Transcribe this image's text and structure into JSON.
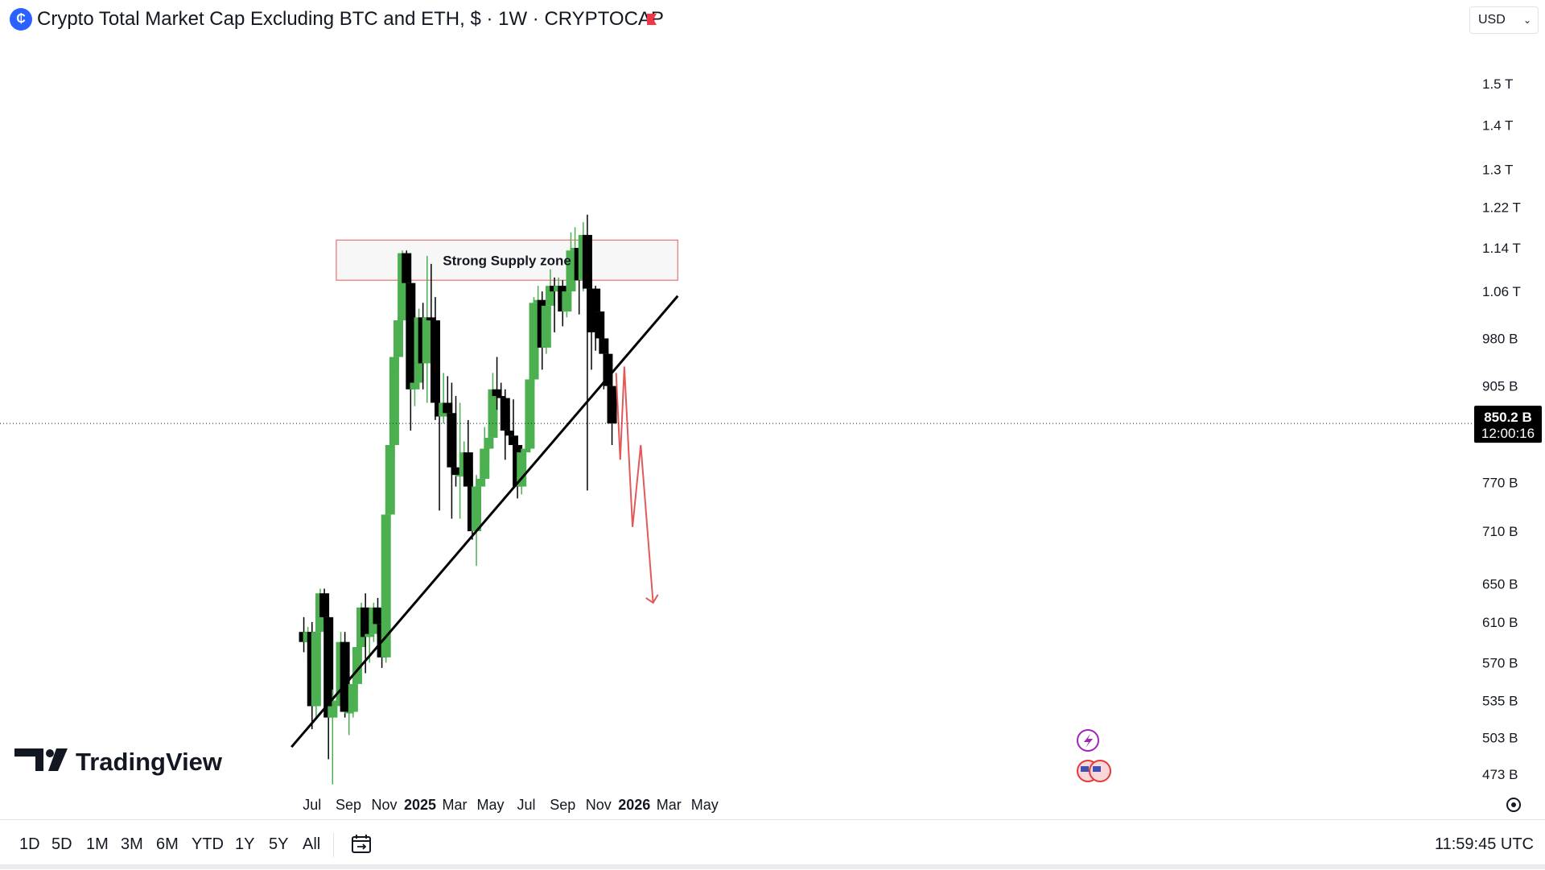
{
  "header": {
    "title": "Crypto Total Market Cap Excluding BTC and ETH, $ · 1W · CRYPTOCAP",
    "currency": "USD",
    "symbol_icon": "cryptocap-logo-icon",
    "flag_icon": "red-flag-icon"
  },
  "bottom_bar": {
    "ranges": [
      "1D",
      "5D",
      "1M",
      "3M",
      "6M",
      "YTD",
      "1Y",
      "5Y",
      "All"
    ],
    "time_utc": "11:59:45 UTC",
    "calendar_icon": "goto-date-calendar-icon"
  },
  "chart_data": {
    "type": "candlestick",
    "title": "",
    "price_scale": "log",
    "ylim": [
      455,
      1610
    ],
    "y_ticks": [
      {
        "label": "1.5 T",
        "value": 1500
      },
      {
        "label": "1.4 T",
        "value": 1400
      },
      {
        "label": "1.3 T",
        "value": 1300
      },
      {
        "label": "1.22 T",
        "value": 1220
      },
      {
        "label": "1.14 T",
        "value": 1140
      },
      {
        "label": "1.06 T",
        "value": 1060
      },
      {
        "label": "980 B",
        "value": 980
      },
      {
        "label": "905 B",
        "value": 905
      },
      {
        "label": "770 B",
        "value": 770
      },
      {
        "label": "710 B",
        "value": 710
      },
      {
        "label": "650 B",
        "value": 650
      },
      {
        "label": "610 B",
        "value": 610
      },
      {
        "label": "570 B",
        "value": 570
      },
      {
        "label": "535 B",
        "value": 535
      },
      {
        "label": "503 B",
        "value": 503
      },
      {
        "label": "473 B",
        "value": 473
      }
    ],
    "x_ticks": [
      {
        "label": "Jul",
        "date": "2024-07-01",
        "bold": false
      },
      {
        "label": "Sep",
        "date": "2024-09-01",
        "bold": false
      },
      {
        "label": "Nov",
        "date": "2024-11-01",
        "bold": false
      },
      {
        "label": "2025",
        "date": "2025-01-01",
        "bold": true
      },
      {
        "label": "Mar",
        "date": "2025-03-01",
        "bold": false
      },
      {
        "label": "May",
        "date": "2025-05-01",
        "bold": false
      },
      {
        "label": "Jul",
        "date": "2025-07-01",
        "bold": false
      },
      {
        "label": "Sep",
        "date": "2025-09-01",
        "bold": false
      },
      {
        "label": "Nov",
        "date": "2025-11-01",
        "bold": false
      },
      {
        "label": "2026",
        "date": "2026-01-01",
        "bold": true
      },
      {
        "label": "Mar",
        "date": "2026-03-01",
        "bold": false
      },
      {
        "label": "May",
        "date": "2026-05-01",
        "bold": false
      }
    ],
    "ohlc_columns": [
      "week",
      "open",
      "high",
      "low",
      "close"
    ],
    "candles": [
      [
        "2024-06-17",
        600,
        615,
        580,
        590
      ],
      [
        "2024-06-24",
        590,
        605,
        570,
        600
      ],
      [
        "2024-07-01",
        600,
        610,
        510,
        530
      ],
      [
        "2024-07-08",
        530,
        605,
        520,
        600
      ],
      [
        "2024-07-15",
        600,
        645,
        595,
        640
      ],
      [
        "2024-07-22",
        640,
        645,
        605,
        615
      ],
      [
        "2024-07-29",
        615,
        620,
        485,
        520
      ],
      [
        "2024-08-05",
        520,
        545,
        465,
        530
      ],
      [
        "2024-08-12",
        530,
        545,
        520,
        535
      ],
      [
        "2024-08-19",
        535,
        600,
        530,
        590
      ],
      [
        "2024-08-26",
        590,
        600,
        520,
        525
      ],
      [
        "2024-09-02",
        525,
        535,
        505,
        525
      ],
      [
        "2024-09-09",
        525,
        555,
        520,
        550
      ],
      [
        "2024-09-16",
        550,
        590,
        545,
        585
      ],
      [
        "2024-09-23",
        585,
        630,
        580,
        625
      ],
      [
        "2024-09-30",
        625,
        640,
        560,
        595
      ],
      [
        "2024-10-07",
        595,
        605,
        570,
        598
      ],
      [
        "2024-10-14",
        598,
        630,
        590,
        625
      ],
      [
        "2024-10-21",
        625,
        635,
        595,
        608
      ],
      [
        "2024-10-28",
        608,
        615,
        565,
        575
      ],
      [
        "2024-11-04",
        575,
        740,
        570,
        730
      ],
      [
        "2024-11-11",
        730,
        830,
        715,
        820
      ],
      [
        "2024-11-18",
        820,
        995,
        800,
        950
      ],
      [
        "2024-11-25",
        950,
        1025,
        930,
        1010
      ],
      [
        "2024-12-02",
        1010,
        1135,
        985,
        1130
      ],
      [
        "2024-12-09",
        1130,
        1135,
        1065,
        1075
      ],
      [
        "2024-12-16",
        1075,
        1085,
        840,
        900
      ],
      [
        "2024-12-23",
        900,
        915,
        875,
        910
      ],
      [
        "2024-12-30",
        910,
        1030,
        900,
        1015
      ],
      [
        "2025-01-06",
        1015,
        1040,
        900,
        940
      ],
      [
        "2025-01-13",
        940,
        1125,
        880,
        1015
      ],
      [
        "2025-01-20",
        1015,
        1110,
        960,
        1010
      ],
      [
        "2025-01-27",
        1010,
        1050,
        855,
        880
      ],
      [
        "2025-02-03",
        880,
        925,
        735,
        860
      ],
      [
        "2025-02-10",
        860,
        925,
        850,
        880
      ],
      [
        "2025-02-17",
        880,
        920,
        840,
        865
      ],
      [
        "2025-02-24",
        865,
        910,
        725,
        790
      ],
      [
        "2025-03-03",
        790,
        890,
        765,
        780
      ],
      [
        "2025-03-10",
        780,
        880,
        725,
        780
      ],
      [
        "2025-03-17",
        780,
        825,
        775,
        810
      ],
      [
        "2025-03-24",
        810,
        855,
        745,
        765
      ],
      [
        "2025-03-31",
        765,
        790,
        700,
        710
      ],
      [
        "2025-04-07",
        710,
        780,
        670,
        765
      ],
      [
        "2025-04-14",
        765,
        790,
        750,
        775
      ],
      [
        "2025-04-21",
        775,
        845,
        765,
        815
      ],
      [
        "2025-04-28",
        815,
        840,
        800,
        830
      ],
      [
        "2025-05-05",
        830,
        925,
        815,
        900
      ],
      [
        "2025-05-12",
        900,
        950,
        870,
        890
      ],
      [
        "2025-05-19",
        890,
        910,
        865,
        887
      ],
      [
        "2025-05-26",
        887,
        900,
        800,
        840
      ],
      [
        "2025-06-02",
        840,
        875,
        825,
        833
      ],
      [
        "2025-06-09",
        833,
        885,
        810,
        820
      ],
      [
        "2025-06-16",
        820,
        830,
        750,
        765
      ],
      [
        "2025-06-23",
        765,
        815,
        755,
        810
      ],
      [
        "2025-06-30",
        810,
        825,
        790,
        815
      ],
      [
        "2025-07-07",
        815,
        920,
        810,
        915
      ],
      [
        "2025-07-14",
        915,
        1050,
        905,
        1040
      ],
      [
        "2025-07-21",
        1040,
        1070,
        1010,
        1045
      ],
      [
        "2025-07-28",
        1045,
        1060,
        930,
        965
      ],
      [
        "2025-08-04",
        965,
        1060,
        955,
        1035
      ],
      [
        "2025-08-11",
        1035,
        1100,
        1020,
        1070
      ],
      [
        "2025-08-18",
        1070,
        1085,
        990,
        1060
      ],
      [
        "2025-08-25",
        1060,
        1085,
        1040,
        1070
      ],
      [
        "2025-09-01",
        1070,
        1080,
        1000,
        1025
      ],
      [
        "2025-09-08",
        1025,
        1070,
        1015,
        1060
      ],
      [
        "2025-09-15",
        1060,
        1170,
        1050,
        1135
      ],
      [
        "2025-09-22",
        1135,
        1180,
        1115,
        1140
      ],
      [
        "2025-09-29",
        1140,
        1160,
        1020,
        1080
      ],
      [
        "2025-10-06",
        1080,
        1190,
        1060,
        1165
      ],
      [
        "2025-10-13",
        1165,
        1205,
        760,
        1065
      ],
      [
        "2025-10-20",
        1065,
        1095,
        930,
        990
      ],
      [
        "2025-10-27",
        1065,
        1070,
        960,
        1025
      ],
      [
        "2025-11-03",
        1025,
        1055,
        960,
        980
      ],
      [
        "2025-11-10",
        980,
        980,
        900,
        955
      ],
      [
        "2025-11-17",
        955,
        960,
        860,
        905
      ],
      [
        "2025-11-24",
        905,
        905,
        820,
        850
      ]
    ],
    "current_price": {
      "label": "850.2 B",
      "countdown": "12:00:16",
      "value": 850.2
    },
    "annotations": [
      {
        "type": "rectangle",
        "label": "Strong Supply zone",
        "date_from": "2024-11-18",
        "date_to": "2026-03-16",
        "price_top": 1155,
        "price_bottom": 1080
      },
      {
        "type": "trendline",
        "from": {
          "date": "2024-05-27",
          "price": 495
        },
        "to": {
          "date": "2026-03-16",
          "price": 1052
        }
      },
      {
        "type": "projection",
        "color": "#e05a5a",
        "points": [
          {
            "date": "2025-12-01",
            "price": 925
          },
          {
            "date": "2025-12-08",
            "price": 800
          },
          {
            "date": "2025-12-15",
            "price": 935
          },
          {
            "date": "2025-12-29",
            "price": 715
          },
          {
            "date": "2026-01-12",
            "price": 820
          },
          {
            "date": "2026-02-02",
            "price": 630
          }
        ]
      }
    ],
    "colors": {
      "up": "#4caf50",
      "down": "#000000",
      "supply_zone_border": "#e57373",
      "supply_zone_fill": "#f7f7f7",
      "trendline": "#000000",
      "projection": "#e05a5a",
      "price_label_bg": "#000000"
    },
    "watermark": "TradingView",
    "event_icons": [
      "lightning-event-icon",
      "us-flag-economic-event-icon"
    ],
    "grid": false
  }
}
